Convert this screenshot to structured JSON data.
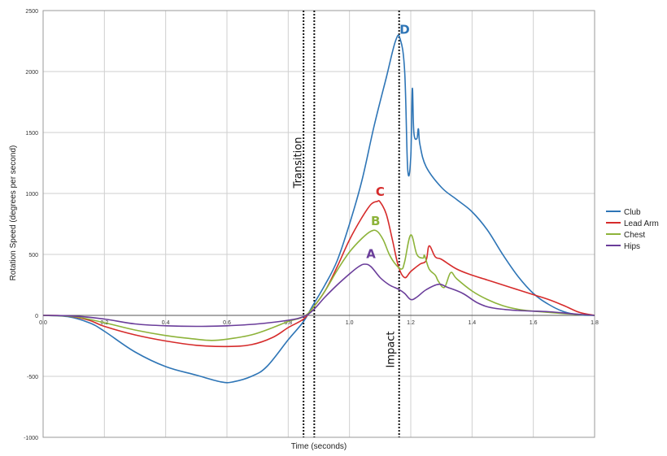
{
  "chart_data": {
    "type": "line",
    "xlabel": "Time (seconds)",
    "ylabel": "Rotation Speed (degrees per second)",
    "xlim": [
      0,
      1.8
    ],
    "ylim": [
      -1000,
      2500
    ],
    "x_ticks": [
      "0.0",
      "0.2",
      "0.4",
      "0.6",
      "0.8",
      "1.0",
      "1.2",
      "1.4",
      "1.6",
      "1.8"
    ],
    "y_ticks": [
      "2500",
      "2000",
      "1500",
      "1000",
      "500",
      "0",
      "-500",
      "-1000"
    ],
    "grid": true,
    "legend_position": "right",
    "series": [
      {
        "name": "Club",
        "color": "#2e75b6",
        "points": [
          [
            0.0,
            0
          ],
          [
            0.08,
            -10
          ],
          [
            0.15,
            -60
          ],
          [
            0.2,
            -130
          ],
          [
            0.3,
            -300
          ],
          [
            0.4,
            -420
          ],
          [
            0.5,
            -490
          ],
          [
            0.58,
            -545
          ],
          [
            0.62,
            -545
          ],
          [
            0.68,
            -500
          ],
          [
            0.73,
            -420
          ],
          [
            0.8,
            -200
          ],
          [
            0.85,
            -50
          ],
          [
            0.88,
            80
          ],
          [
            0.92,
            250
          ],
          [
            0.96,
            450
          ],
          [
            1.0,
            750
          ],
          [
            1.04,
            1100
          ],
          [
            1.08,
            1550
          ],
          [
            1.12,
            1950
          ],
          [
            1.15,
            2250
          ],
          [
            1.165,
            2270
          ],
          [
            1.18,
            2000
          ],
          [
            1.19,
            1200
          ],
          [
            1.2,
            1300
          ],
          [
            1.205,
            1860
          ],
          [
            1.21,
            1500
          ],
          [
            1.22,
            1450
          ],
          [
            1.225,
            1530
          ],
          [
            1.23,
            1400
          ],
          [
            1.25,
            1220
          ],
          [
            1.3,
            1050
          ],
          [
            1.35,
            950
          ],
          [
            1.4,
            850
          ],
          [
            1.45,
            700
          ],
          [
            1.5,
            500
          ],
          [
            1.55,
            320
          ],
          [
            1.6,
            180
          ],
          [
            1.65,
            90
          ],
          [
            1.7,
            30
          ],
          [
            1.75,
            5
          ],
          [
            1.8,
            0
          ]
        ]
      },
      {
        "name": "Lead Arm",
        "color": "#d62b2b",
        "points": [
          [
            0.0,
            0
          ],
          [
            0.08,
            -5
          ],
          [
            0.15,
            -40
          ],
          [
            0.2,
            -90
          ],
          [
            0.3,
            -160
          ],
          [
            0.4,
            -210
          ],
          [
            0.5,
            -245
          ],
          [
            0.6,
            -255
          ],
          [
            0.68,
            -240
          ],
          [
            0.75,
            -180
          ],
          [
            0.8,
            -100
          ],
          [
            0.85,
            -30
          ],
          [
            0.88,
            60
          ],
          [
            0.92,
            200
          ],
          [
            0.96,
            400
          ],
          [
            1.0,
            620
          ],
          [
            1.04,
            800
          ],
          [
            1.07,
            910
          ],
          [
            1.09,
            935
          ],
          [
            1.1,
            930
          ],
          [
            1.12,
            830
          ],
          [
            1.14,
            620
          ],
          [
            1.16,
            400
          ],
          [
            1.18,
            310
          ],
          [
            1.2,
            360
          ],
          [
            1.23,
            420
          ],
          [
            1.25,
            450
          ],
          [
            1.26,
            570
          ],
          [
            1.28,
            480
          ],
          [
            1.3,
            460
          ],
          [
            1.35,
            380
          ],
          [
            1.4,
            330
          ],
          [
            1.45,
            290
          ],
          [
            1.5,
            250
          ],
          [
            1.55,
            210
          ],
          [
            1.6,
            170
          ],
          [
            1.65,
            130
          ],
          [
            1.7,
            80
          ],
          [
            1.75,
            25
          ],
          [
            1.8,
            0
          ]
        ]
      },
      {
        "name": "Chest",
        "color": "#8db33a",
        "points": [
          [
            0.0,
            0
          ],
          [
            0.1,
            -10
          ],
          [
            0.2,
            -60
          ],
          [
            0.3,
            -120
          ],
          [
            0.4,
            -165
          ],
          [
            0.5,
            -195
          ],
          [
            0.55,
            -205
          ],
          [
            0.6,
            -195
          ],
          [
            0.68,
            -160
          ],
          [
            0.75,
            -100
          ],
          [
            0.8,
            -50
          ],
          [
            0.85,
            -10
          ],
          [
            0.88,
            60
          ],
          [
            0.92,
            200
          ],
          [
            0.96,
            370
          ],
          [
            1.0,
            520
          ],
          [
            1.04,
            630
          ],
          [
            1.07,
            690
          ],
          [
            1.09,
            690
          ],
          [
            1.11,
            620
          ],
          [
            1.13,
            500
          ],
          [
            1.15,
            420
          ],
          [
            1.17,
            380
          ],
          [
            1.18,
            440
          ],
          [
            1.2,
            660
          ],
          [
            1.22,
            500
          ],
          [
            1.24,
            470
          ],
          [
            1.245,
            490
          ],
          [
            1.26,
            380
          ],
          [
            1.28,
            330
          ],
          [
            1.29,
            280
          ],
          [
            1.31,
            230
          ],
          [
            1.33,
            350
          ],
          [
            1.35,
            300
          ],
          [
            1.4,
            200
          ],
          [
            1.45,
            130
          ],
          [
            1.5,
            80
          ],
          [
            1.55,
            50
          ],
          [
            1.6,
            35
          ],
          [
            1.7,
            15
          ],
          [
            1.8,
            0
          ]
        ]
      },
      {
        "name": "Hips",
        "color": "#6a3d9a",
        "points": [
          [
            0.0,
            0
          ],
          [
            0.1,
            -5
          ],
          [
            0.2,
            -30
          ],
          [
            0.3,
            -70
          ],
          [
            0.4,
            -85
          ],
          [
            0.5,
            -90
          ],
          [
            0.6,
            -85
          ],
          [
            0.7,
            -70
          ],
          [
            0.8,
            -40
          ],
          [
            0.85,
            -10
          ],
          [
            0.88,
            40
          ],
          [
            0.92,
            150
          ],
          [
            0.96,
            250
          ],
          [
            1.0,
            340
          ],
          [
            1.03,
            400
          ],
          [
            1.05,
            420
          ],
          [
            1.07,
            400
          ],
          [
            1.1,
            310
          ],
          [
            1.13,
            250
          ],
          [
            1.16,
            215
          ],
          [
            1.18,
            180
          ],
          [
            1.2,
            130
          ],
          [
            1.22,
            150
          ],
          [
            1.25,
            210
          ],
          [
            1.29,
            255
          ],
          [
            1.32,
            230
          ],
          [
            1.37,
            180
          ],
          [
            1.42,
            100
          ],
          [
            1.47,
            60
          ],
          [
            1.55,
            40
          ],
          [
            1.65,
            30
          ],
          [
            1.72,
            15
          ],
          [
            1.8,
            0
          ]
        ]
      }
    ],
    "vertical_lines": [
      {
        "x": 0.85,
        "label": ""
      },
      {
        "x": 0.885,
        "label": "Transition"
      },
      {
        "x": 1.162,
        "label": "Impact"
      }
    ],
    "annotations": [
      {
        "text": "A",
        "series": "Hips",
        "x": 1.07,
        "y": 470,
        "color": "#6a3d9a"
      },
      {
        "text": "B",
        "series": "Chest",
        "x": 1.085,
        "y": 740,
        "color": "#8db33a"
      },
      {
        "text": "C",
        "series": "Lead Arm",
        "x": 1.1,
        "y": 980,
        "color": "#d62b2b"
      },
      {
        "text": "D",
        "series": "Club",
        "x": 1.18,
        "y": 2310,
        "color": "#2e75b6"
      }
    ]
  }
}
